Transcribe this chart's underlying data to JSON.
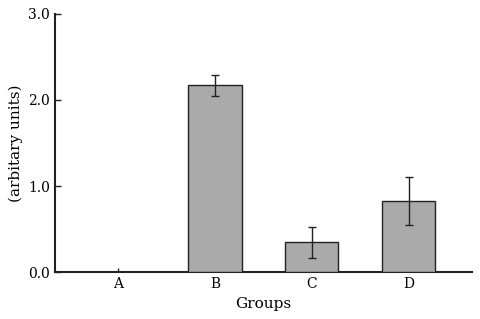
{
  "categories": [
    "A",
    "B",
    "C",
    "D"
  ],
  "values": [
    0.0,
    2.17,
    0.35,
    0.83
  ],
  "errors": [
    0.0,
    0.12,
    0.18,
    0.28
  ],
  "bar_color": "#aaaaaa",
  "bar_edgecolor": "#222222",
  "xlabel": "Groups",
  "ylabel": "(arbitary units)",
  "ylim": [
    0.0,
    3.0
  ],
  "yticks": [
    0.0,
    1.0,
    2.0,
    3.0
  ],
  "ytick_labels": [
    "0.0",
    "1.0",
    "2.0",
    "3.0"
  ],
  "background_color": "#ffffff",
  "bar_width": 0.55,
  "label_fontsize": 11,
  "tick_fontsize": 10,
  "errorbar_capsize": 3,
  "errorbar_linewidth": 1.0,
  "errorbar_color": "#222222",
  "spine_color": "#222222",
  "spine_linewidth": 1.5
}
